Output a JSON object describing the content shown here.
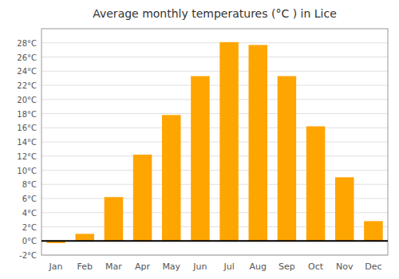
{
  "chart_data": {
    "type": "bar",
    "title": "Average monthly temperatures (°C ) in Lice",
    "categories": [
      "Jan",
      "Feb",
      "Mar",
      "Apr",
      "May",
      "Jun",
      "Jul",
      "Aug",
      "Sep",
      "Oct",
      "Nov",
      "Dec"
    ],
    "values": [
      -0.3,
      1.0,
      6.2,
      12.2,
      17.8,
      23.3,
      28.1,
      27.7,
      23.3,
      16.2,
      9.0,
      2.8
    ],
    "color": "#FFA500",
    "ylim": [
      -2,
      30
    ],
    "yticks": [
      {
        "value": -2,
        "label": "-2°C"
      },
      {
        "value": 0,
        "label": "0°C"
      },
      {
        "value": 2,
        "label": "2°C"
      },
      {
        "value": 4,
        "label": "4°C"
      },
      {
        "value": 6,
        "label": "6°C"
      },
      {
        "value": 8,
        "label": "8°C"
      },
      {
        "value": 10,
        "label": "10°C"
      },
      {
        "value": 12,
        "label": "12°C"
      },
      {
        "value": 14,
        "label": "14°C"
      },
      {
        "value": 16,
        "label": "16°C"
      },
      {
        "value": 18,
        "label": "18°C"
      },
      {
        "value": 20,
        "label": "20°C"
      },
      {
        "value": 22,
        "label": "22°C"
      },
      {
        "value": 24,
        "label": "24°C"
      },
      {
        "value": 26,
        "label": "26°C"
      },
      {
        "value": 28,
        "label": "28°C"
      }
    ],
    "grid": true
  }
}
